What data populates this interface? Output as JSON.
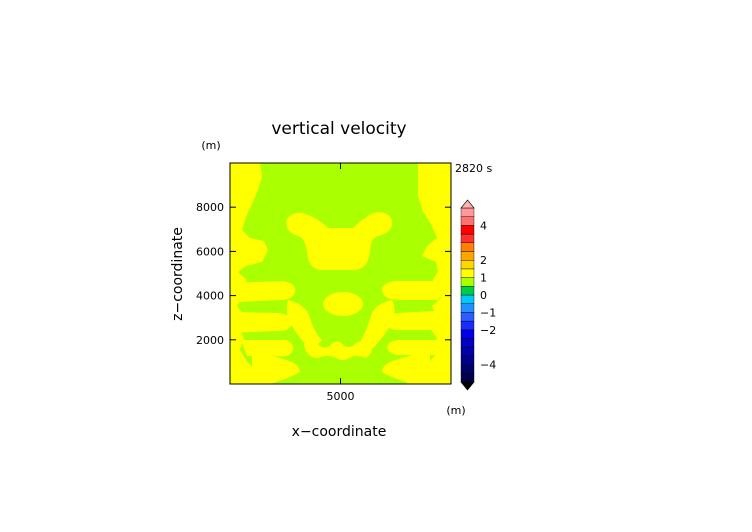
{
  "chart_data": {
    "type": "heatmap",
    "title": "vertical velocity",
    "xlabel": "x−coordinate",
    "ylabel": "z−coordinate",
    "x_unit": "(m)",
    "y_unit": "(m)",
    "time_label": "2820 s",
    "xlim": [
      0,
      10000
    ],
    "ylim": [
      0,
      10000
    ],
    "x_ticks": [
      {
        "value": 5000,
        "label": "5000"
      }
    ],
    "y_ticks": [
      {
        "value": 2000,
        "label": "2000"
      },
      {
        "value": 4000,
        "label": "4000"
      },
      {
        "value": 6000,
        "label": "6000"
      },
      {
        "value": 8000,
        "label": "8000"
      }
    ],
    "colorbar": {
      "levels": [
        -5,
        -4.5,
        -4,
        -3.5,
        -3,
        -2.5,
        -2,
        -1.5,
        -1,
        -0.5,
        0,
        0.5,
        1,
        1.5,
        2,
        2.5,
        3,
        3.5,
        4,
        4.5,
        5
      ],
      "colors": [
        "#00004a",
        "#00006a",
        "#00008c",
        "#0000aa",
        "#0000c8",
        "#0000e6",
        "#1a2cff",
        "#2a5cff",
        "#1e90ff",
        "#00c8ff",
        "#00cc44",
        "#aaff00",
        "#ffff00",
        "#ffd700",
        "#ffa500",
        "#ff8000",
        "#ff3030",
        "#ff0000",
        "#ff7070",
        "#ff9999",
        "#ffb0b0"
      ],
      "tick_labels": [
        {
          "value": 4,
          "label": "4"
        },
        {
          "value": 2,
          "label": "2"
        },
        {
          "value": 1,
          "label": "1"
        },
        {
          "value": 0,
          "label": "0"
        },
        {
          "value": -1,
          "label": "−1"
        },
        {
          "value": -2,
          "label": "−2"
        },
        {
          "value": -4,
          "label": "−4"
        }
      ]
    },
    "field_colors": {
      "background": "#aaff00",
      "positive": "#ffff00"
    }
  }
}
